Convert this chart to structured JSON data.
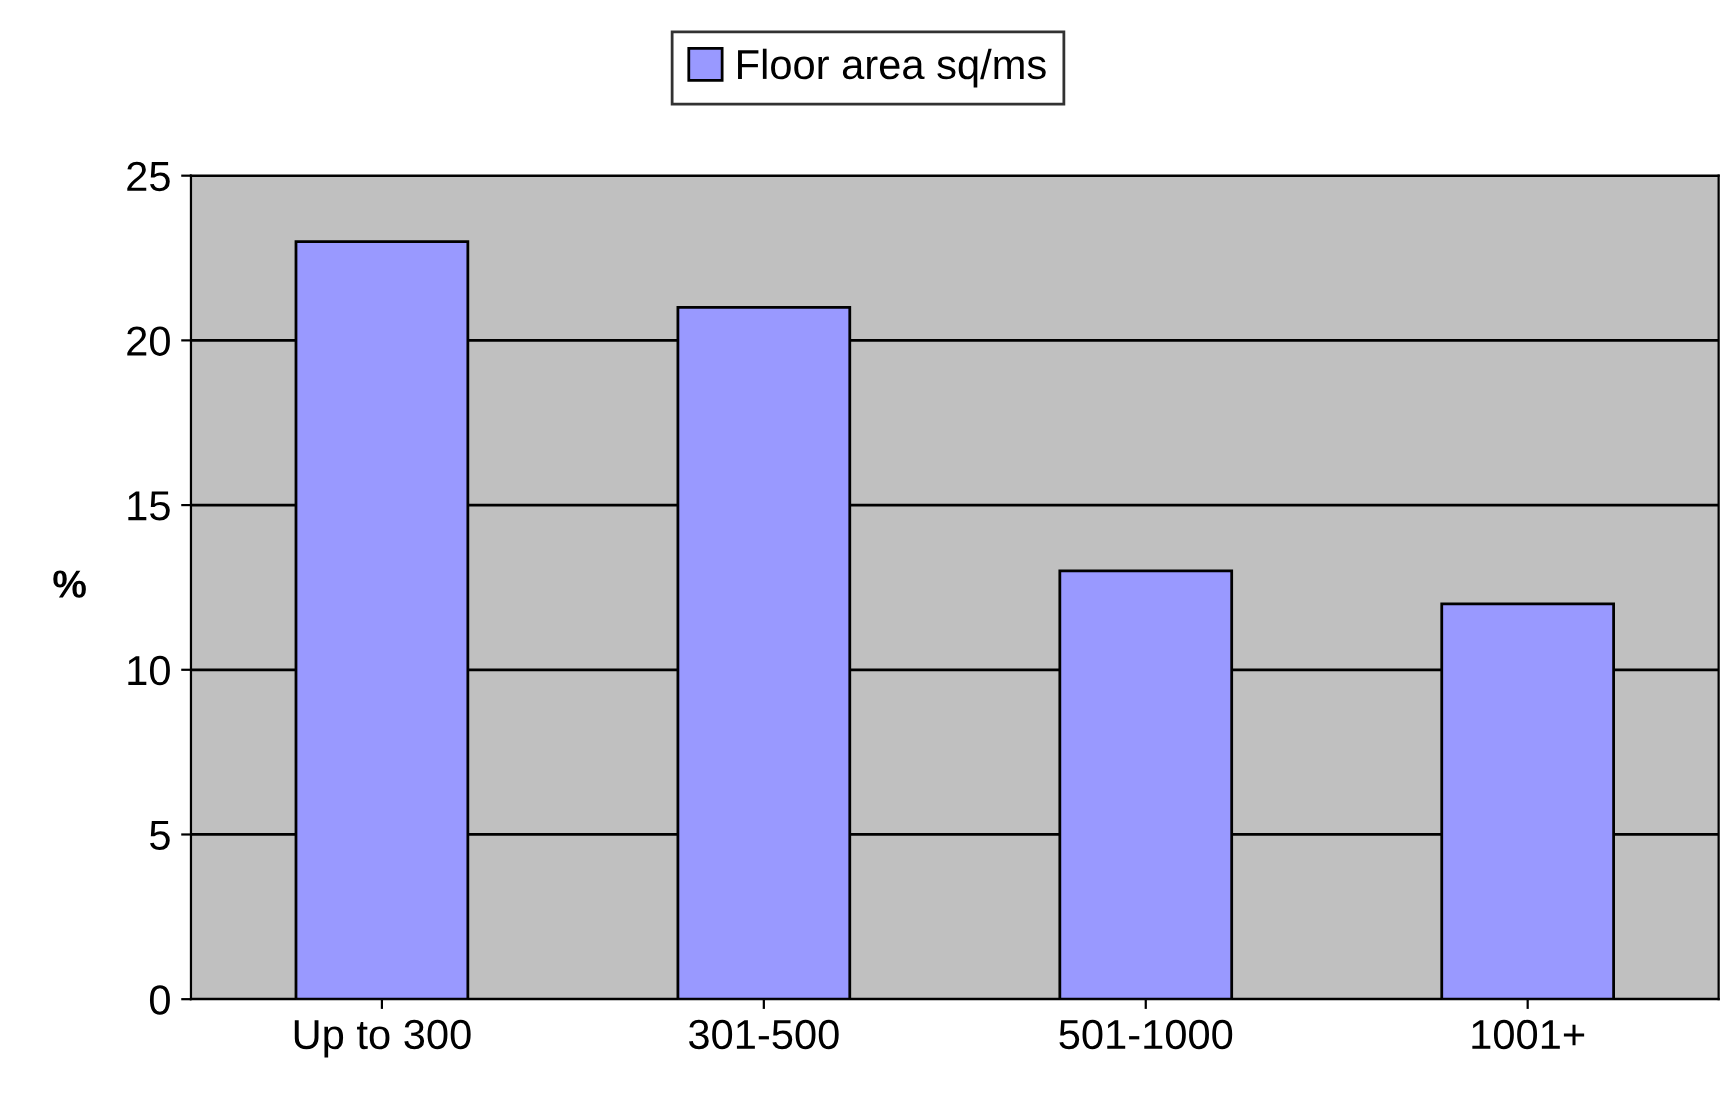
{
  "chart_data": {
    "type": "bar",
    "categories": [
      "Up to 300",
      "301-500",
      "501-1000",
      "1001+"
    ],
    "series": [
      {
        "name": "Floor area sq/ms",
        "color": "#9999ff",
        "values": [
          23,
          21,
          13,
          12
        ]
      }
    ],
    "ylabel": "%",
    "ylim": [
      0,
      25
    ],
    "yticks": [
      0,
      5,
      10,
      15,
      20,
      25
    ],
    "grid": "y",
    "legend": "top"
  }
}
